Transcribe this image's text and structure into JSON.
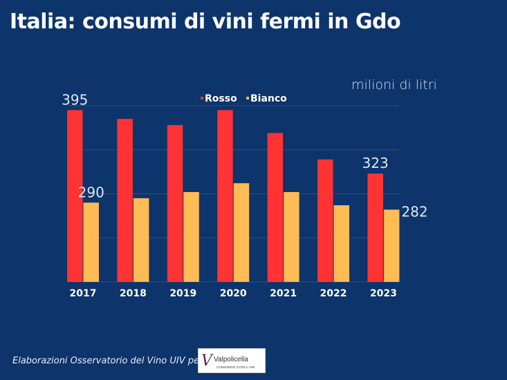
{
  "title": "Italia: consumi di vini fermi in Gdo",
  "footer": "Elaborazioni Osservatorio del Vino UIV per",
  "logo": {
    "text": "Valpolicella",
    "subtext": "CONSORZIO TUTELA VINI"
  },
  "chart_data": {
    "type": "bar",
    "title": "Italia: consumi di vini fermi in Gdo",
    "unit_label": "milioni di litri",
    "categories": [
      "2017",
      "2018",
      "2019",
      "2020",
      "2021",
      "2022",
      "2023"
    ],
    "series": [
      {
        "name": "Rosso",
        "color": "#ff3333",
        "values": [
          395,
          385,
          378,
          395,
          369,
          339,
          323
        ]
      },
      {
        "name": "Bianco",
        "color": "#ffbb55",
        "values": [
          290,
          295,
          302,
          312,
          302,
          287,
          282
        ]
      }
    ],
    "data_labels": [
      {
        "series": "Rosso",
        "category": "2017",
        "text": "395"
      },
      {
        "series": "Bianco",
        "category": "2017",
        "text": "290"
      },
      {
        "series": "Rosso",
        "category": "2023",
        "text": "323"
      },
      {
        "series": "Bianco",
        "category": "2023",
        "text": "282"
      }
    ],
    "ylim": [
      200,
      400
    ],
    "grid": true,
    "legend": "top-center"
  }
}
